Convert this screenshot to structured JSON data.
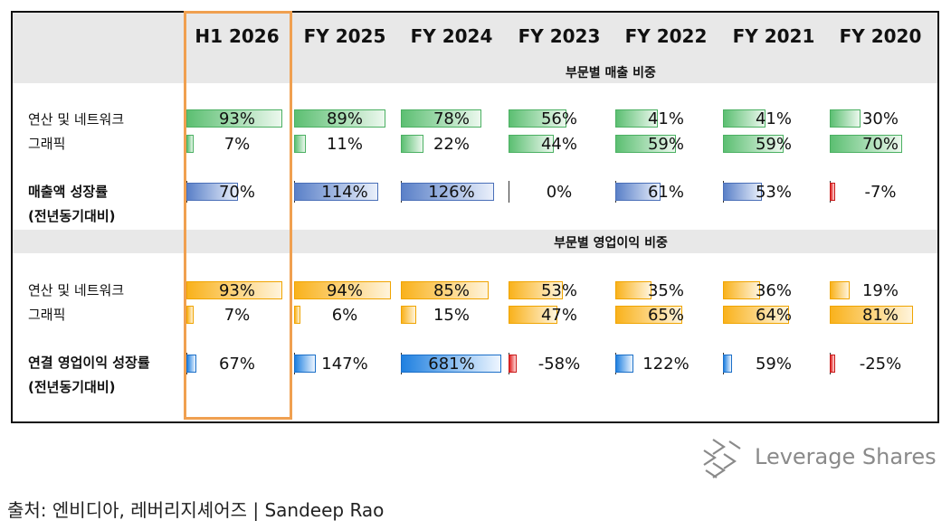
{
  "chart_data": {
    "type": "table",
    "columns": [
      "H1 2026",
      "FY 2025",
      "FY 2024",
      "FY 2023",
      "FY 2022",
      "FY 2021",
      "FY 2020"
    ],
    "highlighted_column": "H1 2026",
    "sections": [
      {
        "title": "부문별 매출 비중",
        "rows": [
          {
            "label": "연산 및 네트워크",
            "values": [
              93,
              89,
              78,
              56,
              41,
              41,
              30
            ],
            "display": [
              "93%",
              "89%",
              "78%",
              "56%",
              "41%",
              "41%",
              "30%"
            ],
            "color": "#5cbf72"
          },
          {
            "label": "그래픽",
            "values": [
              7,
              11,
              22,
              44,
              59,
              59,
              70
            ],
            "display": [
              "7%",
              "11%",
              "22%",
              "44%",
              "59%",
              "59%",
              "70%"
            ],
            "color": "#5cbf72"
          }
        ],
        "growth": {
          "label_1": "매출액 성장률",
          "label_2": "(전년동기대비)",
          "values": [
            70,
            114,
            126,
            0,
            61,
            53,
            -7
          ],
          "display": [
            "70%",
            "114%",
            "126%",
            "0%",
            "61%",
            "53%",
            "-7%"
          ],
          "color": "#5a80c8",
          "negative_color": "#e02020"
        }
      },
      {
        "title": "부문별 영업이익 비중",
        "rows": [
          {
            "label": "연산 및 네트워크",
            "values": [
              93,
              94,
              85,
              53,
              35,
              36,
              19
            ],
            "display": [
              "93%",
              "94%",
              "85%",
              "53%",
              "35%",
              "36%",
              "19%"
            ],
            "color": "#f9b21c"
          },
          {
            "label": "그래픽",
            "values": [
              7,
              6,
              15,
              47,
              65,
              64,
              81
            ],
            "display": [
              "7%",
              "6%",
              "15%",
              "47%",
              "65%",
              "64%",
              "81%"
            ],
            "color": "#f9b21c"
          }
        ],
        "growth": {
          "label_1": "연결 영업이익 성장률",
          "label_2": "(전년동기대비)",
          "values": [
            67,
            147,
            681,
            -58,
            122,
            59,
            -25
          ],
          "display": [
            "67%",
            "147%",
            "681%",
            "-58%",
            "122%",
            "59%",
            "-25%"
          ],
          "color": "#1f80e0",
          "negative_color": "#e02020"
        }
      }
    ]
  },
  "branding": {
    "logo_text": "Leverage Shares",
    "logo_icon": "leverage-shares-logo-icon"
  },
  "source": "출처: 엔비디아, 레버리지셰어즈 | Sandeep Rao"
}
